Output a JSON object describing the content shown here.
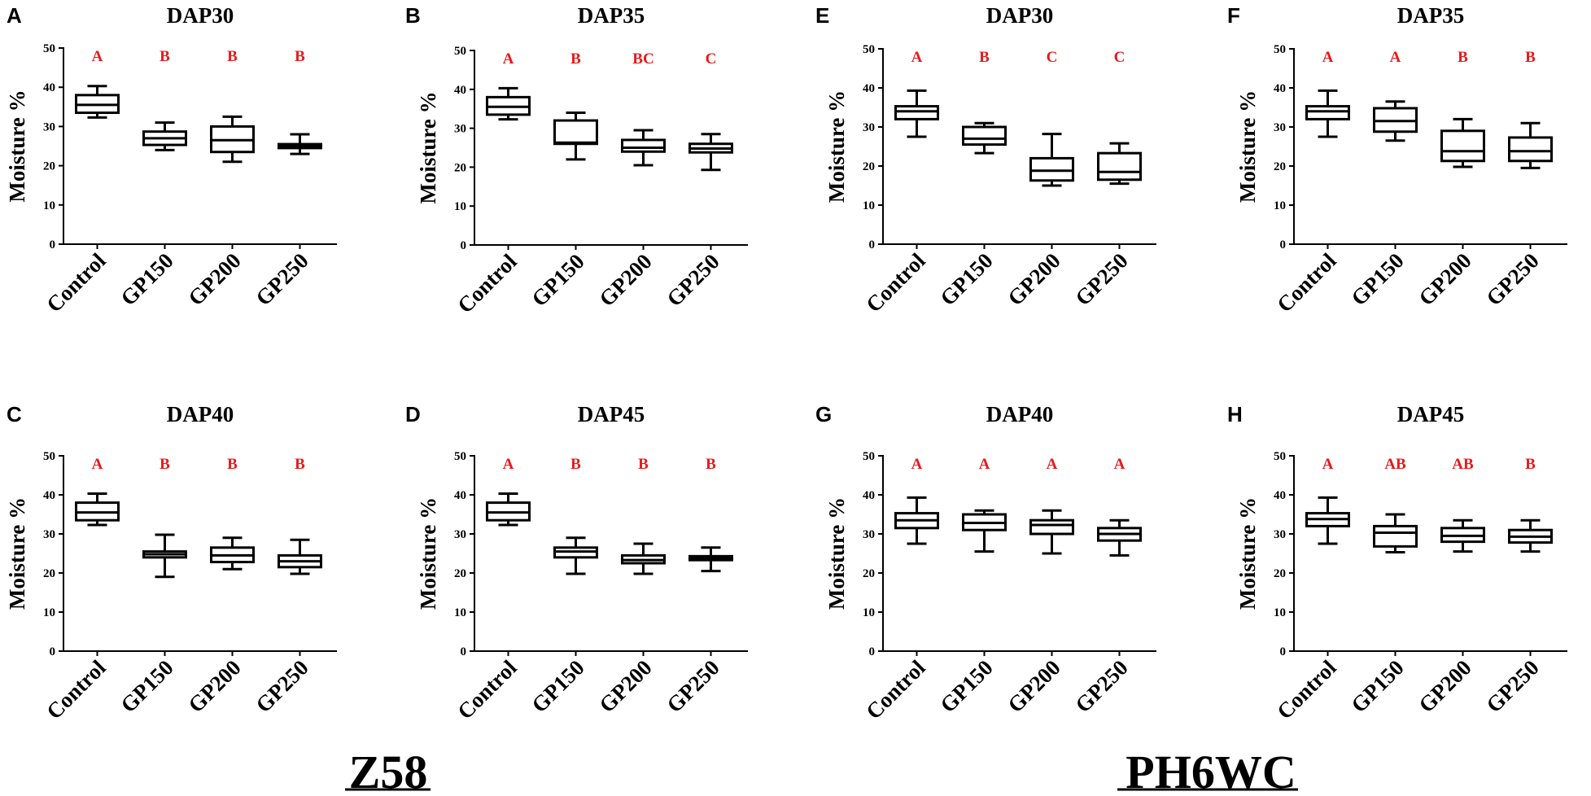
{
  "colors": {
    "axis": "#000000",
    "significance": "#e8191b",
    "box_fill": "#ffffff"
  },
  "group_labels": [
    "Z58",
    "PH6WC"
  ],
  "chart_data": [
    {
      "type": "box",
      "letter": "A",
      "title": "DAP30",
      "ylabel": "Moisture %",
      "group": "Z58",
      "ylim": [
        0,
        50
      ],
      "yticks": [
        0,
        10,
        20,
        30,
        40,
        50
      ],
      "categories": [
        "Control",
        "GP150",
        "GP200",
        "GP250"
      ],
      "significance": [
        "A",
        "B",
        "B",
        "B"
      ],
      "boxes": [
        {
          "min": 32.3,
          "q1": 33.5,
          "median": 35.5,
          "q3": 38,
          "max": 40.3
        },
        {
          "min": 24,
          "q1": 25.3,
          "median": 27,
          "q3": 28.7,
          "max": 31
        },
        {
          "min": 21,
          "q1": 23.5,
          "median": 26.5,
          "q3": 30,
          "max": 32.5
        },
        {
          "min": 23,
          "q1": 24.5,
          "median": 25,
          "q3": 25.5,
          "max": 28
        }
      ]
    },
    {
      "type": "box",
      "letter": "B",
      "title": "DAP35",
      "ylabel": "Moisture %",
      "group": "Z58",
      "ylim": [
        0,
        50
      ],
      "yticks": [
        0,
        10,
        20,
        30,
        40,
        50
      ],
      "categories": [
        "Control",
        "GP150",
        "GP200",
        "GP250"
      ],
      "significance": [
        "A",
        "B",
        "BC",
        "C"
      ],
      "boxes": [
        {
          "min": 32.3,
          "q1": 33.5,
          "median": 35.5,
          "q3": 38,
          "max": 40.3
        },
        {
          "min": 22,
          "q1": 26,
          "median": 26.3,
          "q3": 32,
          "max": 34
        },
        {
          "min": 20.5,
          "q1": 24,
          "median": 25,
          "q3": 27,
          "max": 29.5
        },
        {
          "min": 19.3,
          "q1": 23.8,
          "median": 24.8,
          "q3": 26,
          "max": 28.5
        }
      ]
    },
    {
      "type": "box",
      "letter": "C",
      "title": "DAP40",
      "ylabel": "Moisture %",
      "group": "Z58",
      "ylim": [
        0,
        50
      ],
      "yticks": [
        0,
        10,
        20,
        30,
        40,
        50
      ],
      "categories": [
        "Control",
        "GP150",
        "GP200",
        "GP250"
      ],
      "significance": [
        "A",
        "B",
        "B",
        "B"
      ],
      "boxes": [
        {
          "min": 32.3,
          "q1": 33.5,
          "median": 35.5,
          "q3": 38,
          "max": 40.3
        },
        {
          "min": 19,
          "q1": 24,
          "median": 24.8,
          "q3": 25.5,
          "max": 29.8
        },
        {
          "min": 21,
          "q1": 22.8,
          "median": 24.5,
          "q3": 26.5,
          "max": 29
        },
        {
          "min": 19.8,
          "q1": 21.5,
          "median": 23,
          "q3": 24.5,
          "max": 28.5
        }
      ]
    },
    {
      "type": "box",
      "letter": "D",
      "title": "DAP45",
      "ylabel": "Moisture %",
      "group": "Z58",
      "ylim": [
        0,
        50
      ],
      "yticks": [
        0,
        10,
        20,
        30,
        40,
        50
      ],
      "categories": [
        "Control",
        "GP150",
        "GP200",
        "GP250"
      ],
      "significance": [
        "A",
        "B",
        "B",
        "B"
      ],
      "boxes": [
        {
          "min": 32.3,
          "q1": 33.5,
          "median": 35.5,
          "q3": 38,
          "max": 40.3
        },
        {
          "min": 19.8,
          "q1": 24,
          "median": 25.5,
          "q3": 26.5,
          "max": 29
        },
        {
          "min": 19.8,
          "q1": 22.5,
          "median": 23.3,
          "q3": 24.5,
          "max": 27.5
        },
        {
          "min": 20.5,
          "q1": 23.3,
          "median": 23.8,
          "q3": 24.3,
          "max": 26.5
        }
      ]
    },
    {
      "type": "box",
      "letter": "E",
      "title": "DAP30",
      "ylabel": "Moisture %",
      "group": "PH6WC",
      "ylim": [
        0,
        50
      ],
      "yticks": [
        0,
        10,
        20,
        30,
        40,
        50
      ],
      "categories": [
        "Control",
        "GP150",
        "GP200",
        "GP250"
      ],
      "significance": [
        "A",
        "B",
        "C",
        "C"
      ],
      "boxes": [
        {
          "min": 27.5,
          "q1": 32,
          "median": 34,
          "q3": 35.3,
          "max": 39.3
        },
        {
          "min": 23.3,
          "q1": 25.5,
          "median": 27,
          "q3": 30,
          "max": 31
        },
        {
          "min": 15,
          "q1": 16.3,
          "median": 18.8,
          "q3": 22,
          "max": 28.2
        },
        {
          "min": 15.5,
          "q1": 16.5,
          "median": 18.5,
          "q3": 23.3,
          "max": 25.8
        }
      ]
    },
    {
      "type": "box",
      "letter": "F",
      "title": "DAP35",
      "ylabel": "Moisture %",
      "group": "PH6WC",
      "ylim": [
        0,
        50
      ],
      "yticks": [
        0,
        10,
        20,
        30,
        40,
        50
      ],
      "categories": [
        "Control",
        "GP150",
        "GP200",
        "GP250"
      ],
      "significance": [
        "A",
        "A",
        "B",
        "B"
      ],
      "boxes": [
        {
          "min": 27.5,
          "q1": 32,
          "median": 34,
          "q3": 35.3,
          "max": 39.3
        },
        {
          "min": 26.5,
          "q1": 28.8,
          "median": 31.5,
          "q3": 34.8,
          "max": 36.5
        },
        {
          "min": 19.8,
          "q1": 21.3,
          "median": 23.8,
          "q3": 29,
          "max": 32
        },
        {
          "min": 19.5,
          "q1": 21.3,
          "median": 23.8,
          "q3": 27.3,
          "max": 31
        }
      ]
    },
    {
      "type": "box",
      "letter": "G",
      "title": "DAP40",
      "ylabel": "Moisture %",
      "group": "PH6WC",
      "ylim": [
        0,
        50
      ],
      "yticks": [
        0,
        10,
        20,
        30,
        40,
        50
      ],
      "categories": [
        "Control",
        "GP150",
        "GP200",
        "GP250"
      ],
      "significance": [
        "A",
        "A",
        "A",
        "A"
      ],
      "boxes": [
        {
          "min": 27.5,
          "q1": 31.5,
          "median": 33.5,
          "q3": 35.3,
          "max": 39.3
        },
        {
          "min": 25.5,
          "q1": 31,
          "median": 32.8,
          "q3": 35,
          "max": 36
        },
        {
          "min": 25,
          "q1": 30,
          "median": 32.3,
          "q3": 33.5,
          "max": 36
        },
        {
          "min": 24.5,
          "q1": 28.3,
          "median": 30,
          "q3": 31.5,
          "max": 33.5
        }
      ]
    },
    {
      "type": "box",
      "letter": "H",
      "title": "DAP45",
      "ylabel": "Moisture %",
      "group": "PH6WC",
      "ylim": [
        0,
        50
      ],
      "yticks": [
        0,
        10,
        20,
        30,
        40,
        50
      ],
      "categories": [
        "Control",
        "GP150",
        "GP200",
        "GP250"
      ],
      "significance": [
        "A",
        "AB",
        "AB",
        "B"
      ],
      "boxes": [
        {
          "min": 27.5,
          "q1": 32,
          "median": 33.8,
          "q3": 35.3,
          "max": 39.3
        },
        {
          "min": 25.3,
          "q1": 26.8,
          "median": 30.3,
          "q3": 32,
          "max": 35
        },
        {
          "min": 25.5,
          "q1": 28,
          "median": 29.5,
          "q3": 31.5,
          "max": 33.5
        },
        {
          "min": 25.5,
          "q1": 27.8,
          "median": 29.3,
          "q3": 31,
          "max": 33.5
        }
      ]
    }
  ]
}
